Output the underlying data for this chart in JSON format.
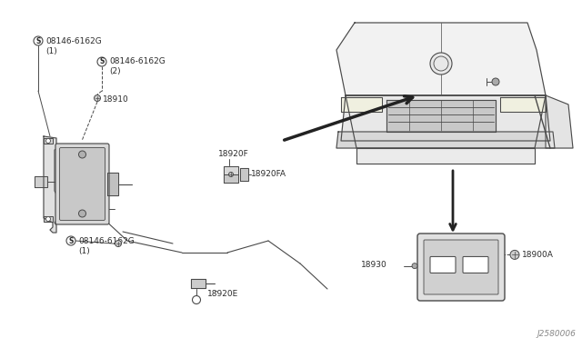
{
  "bg_color": "#ffffff",
  "line_color": "#4a4a4a",
  "text_color": "#2a2a2a",
  "font_size": 6.5,
  "diagram_code": "J2580006",
  "labels": {
    "s1_part": "08146-6162G",
    "s1_sub": "(1)",
    "s2_part": "08146-6162G",
    "s2_sub": "(2)",
    "s3_part": "08146-6162G",
    "s3_sub": "(1)",
    "p18910": "18910",
    "p18920F_L": "18920F",
    "p18920F_C": "18920F",
    "p18920FA": "18920FA",
    "p18920E": "18920E",
    "p18930": "18930",
    "p18900A": "18900A"
  }
}
